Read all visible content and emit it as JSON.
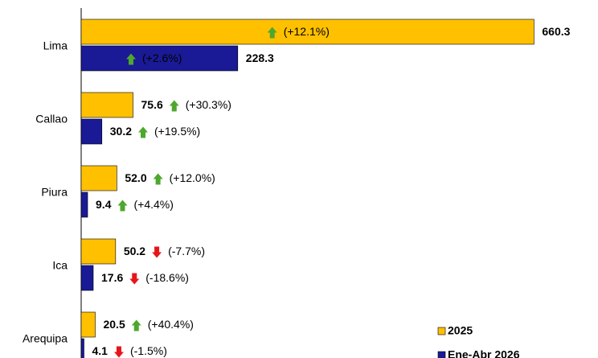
{
  "chart_data": {
    "type": "hbar",
    "categories": [
      "Lima",
      "Callao",
      "Piura",
      "Ica",
      "Arequipa"
    ],
    "series": [
      {
        "name": "2025",
        "color": "#FFC000",
        "values": [
          660.3,
          75.6,
          52.0,
          50.2,
          20.5
        ],
        "value_labels": [
          "660.3",
          "75.6",
          "52.0",
          "50.2",
          "20.5"
        ],
        "changes": [
          12.1,
          30.3,
          12.0,
          -7.7,
          40.4
        ],
        "change_labels": [
          "(+12.1%)",
          "(+30.3%)",
          "(+12.0%)",
          "(-7.7%)",
          "(+40.4%)"
        ]
      },
      {
        "name": "Ene-Abr 2026",
        "color": "#1A1A96",
        "values": [
          228.3,
          30.2,
          9.4,
          17.6,
          4.1
        ],
        "value_labels": [
          "228.3",
          "30.2",
          "9.4",
          "17.6",
          "4.1"
        ],
        "changes": [
          2.6,
          19.5,
          4.4,
          -18.6,
          -1.5
        ],
        "change_labels": [
          "(+2.6%)",
          "(+19.5%)",
          "(+4.4%)",
          "(-18.6%)",
          "(-1.5%)"
        ]
      }
    ],
    "xlim": [
      0,
      661
    ],
    "up_color": "#4EA72E",
    "down_color": "#E8141B"
  }
}
